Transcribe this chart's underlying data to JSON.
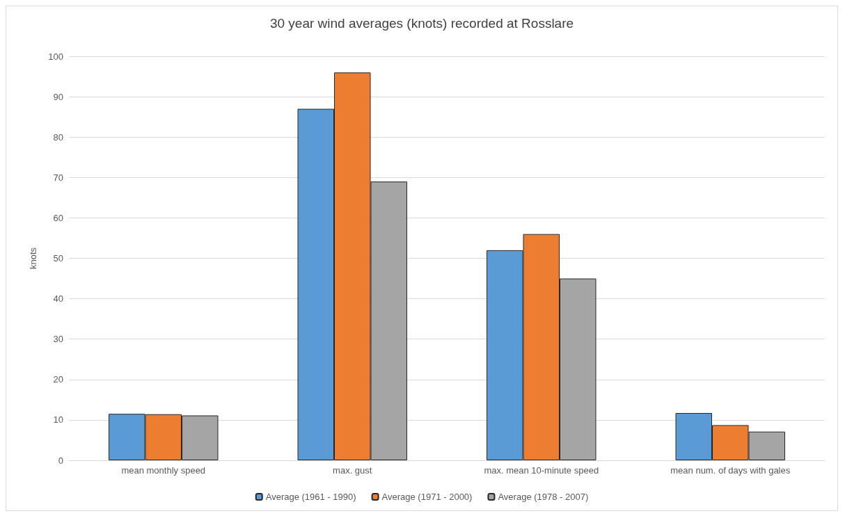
{
  "chart_data": {
    "type": "bar",
    "title": "30 year wind averages (knots) recorded at Rosslare",
    "ylabel": "knots",
    "categories": [
      "mean monthly speed",
      "max. gust",
      "max. mean 10-minute speed",
      "mean num. of days with gales"
    ],
    "series": [
      {
        "name": "Average (1961 - 1990)",
        "color": "#5b9bd5",
        "values": [
          11.5,
          87,
          52,
          11.7
        ]
      },
      {
        "name": "Average (1971 - 2000)",
        "color": "#ed7d31",
        "values": [
          11.4,
          96,
          56,
          8.7
        ]
      },
      {
        "name": "Average (1978 - 2007)",
        "color": "#a5a5a5",
        "values": [
          11.1,
          69,
          45,
          7.1
        ]
      }
    ],
    "ylim": [
      0,
      100
    ],
    "yticks": [
      0,
      10,
      20,
      30,
      40,
      50,
      60,
      70,
      80,
      90,
      100
    ],
    "grid": "y",
    "legend": "bottom"
  }
}
